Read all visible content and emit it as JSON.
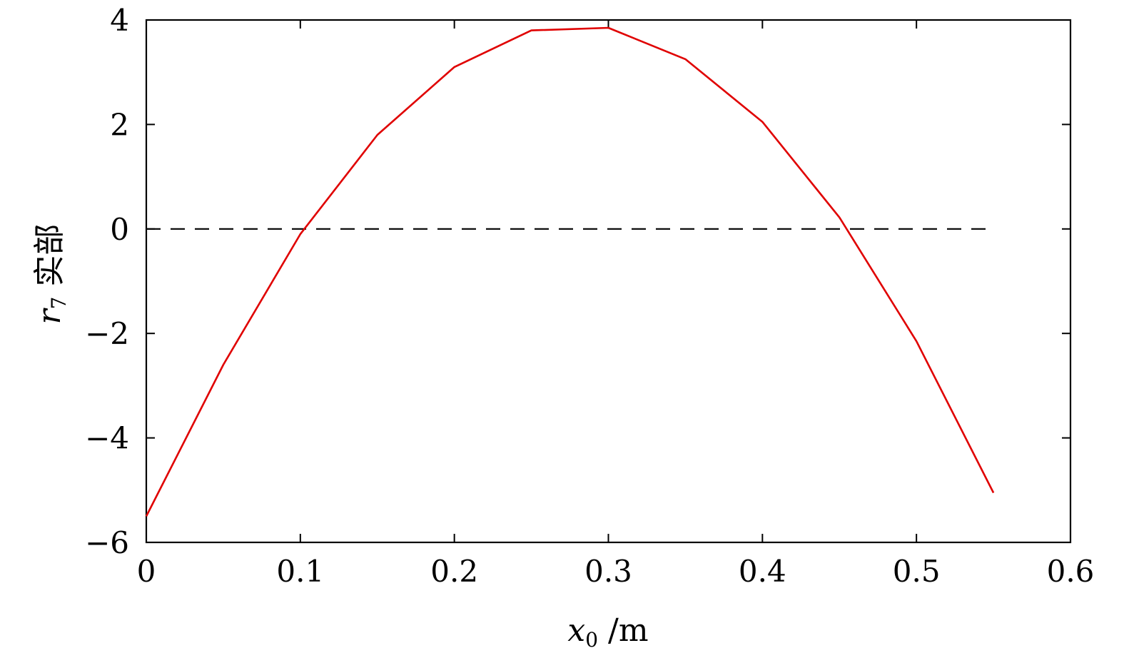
{
  "chart_data": {
    "type": "line",
    "xlabel": {
      "var": "x",
      "sub": "0",
      "unit": " /m"
    },
    "ylabel": {
      "var": "r",
      "sub": "7",
      "text": "实部"
    },
    "xlim": [
      0,
      0.6
    ],
    "ylim": [
      -6,
      4
    ],
    "xticks": [
      "0",
      "0.1",
      "0.2",
      "0.3",
      "0.4",
      "0.5",
      "0.6"
    ],
    "yticks": [
      "−6",
      "−4",
      "−2",
      "0",
      "2",
      "4"
    ],
    "grid": false,
    "series": [
      {
        "color": "#e00000",
        "style": "solid",
        "x": [
          0,
          0.05,
          0.1,
          0.15,
          0.2,
          0.25,
          0.3,
          0.35,
          0.4,
          0.45,
          0.5,
          0.55
        ],
        "y": [
          -5.5,
          -2.6,
          -0.1,
          1.8,
          3.1,
          3.8,
          3.85,
          3.25,
          2.05,
          0.22,
          -2.15,
          -5.05
        ]
      }
    ],
    "reference_line": {
      "y": 0,
      "x_range": [
        0,
        0.55
      ],
      "color": "#000000",
      "style": "dashed"
    }
  }
}
